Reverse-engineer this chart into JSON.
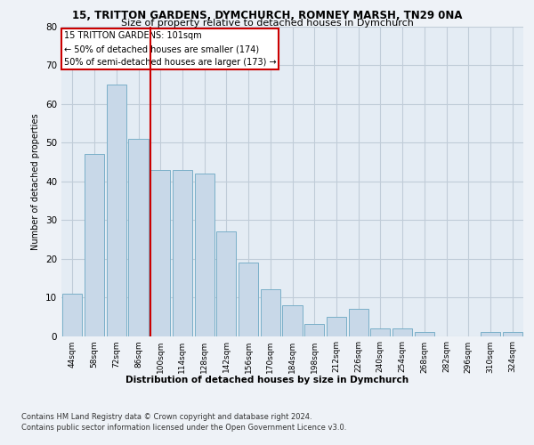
{
  "title1": "15, TRITTON GARDENS, DYMCHURCH, ROMNEY MARSH, TN29 0NA",
  "title2": "Size of property relative to detached houses in Dymchurch",
  "xlabel": "Distribution of detached houses by size in Dymchurch",
  "ylabel": "Number of detached properties",
  "categories": [
    "44sqm",
    "58sqm",
    "72sqm",
    "86sqm",
    "100sqm",
    "114sqm",
    "128sqm",
    "142sqm",
    "156sqm",
    "170sqm",
    "184sqm",
    "198sqm",
    "212sqm",
    "226sqm",
    "240sqm",
    "254sqm",
    "268sqm",
    "282sqm",
    "296sqm",
    "310sqm",
    "324sqm"
  ],
  "values": [
    11,
    47,
    65,
    51,
    43,
    43,
    42,
    27,
    19,
    12,
    8,
    3,
    5,
    7,
    2,
    2,
    1,
    0,
    0,
    1,
    1
  ],
  "bar_color": "#c8d8e8",
  "bar_edge_color": "#7aafc8",
  "grid_color": "#c0ccd8",
  "property_label": "15 TRITTON GARDENS: 101sqm",
  "annotation_line1": "← 50% of detached houses are smaller (174)",
  "annotation_line2": "50% of semi-detached houses are larger (173) →",
  "vline_color": "#cc0000",
  "vline_x_index": 4,
  "annotation_box_color": "#cc0000",
  "ylim": [
    0,
    80
  ],
  "yticks": [
    0,
    10,
    20,
    30,
    40,
    50,
    60,
    70,
    80
  ],
  "footer1": "Contains HM Land Registry data © Crown copyright and database right 2024.",
  "footer2": "Contains public sector information licensed under the Open Government Licence v3.0.",
  "bg_color": "#eef2f7",
  "plot_bg_color": "#e4ecf4"
}
